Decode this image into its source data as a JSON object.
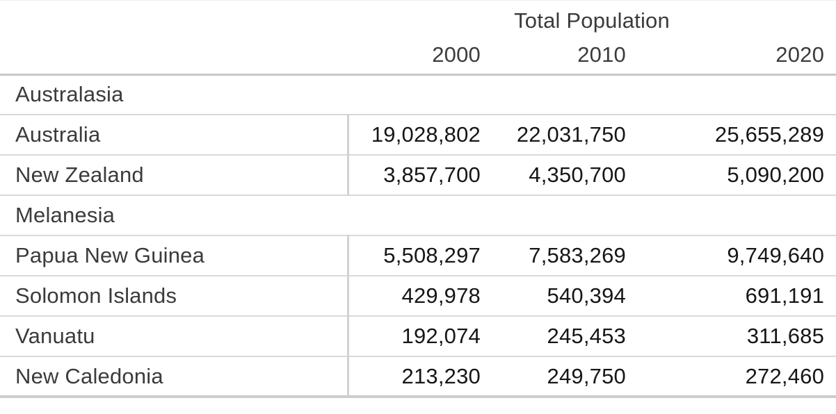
{
  "chart_data": {
    "type": "table",
    "title": "Total Population",
    "columns": [
      "",
      "2000",
      "2010",
      "2020"
    ],
    "sections": [
      {
        "label": "Australasia",
        "rows": [
          {
            "name": "Australia",
            "values": [
              "19,028,802",
              "22,031,750",
              "25,655,289"
            ]
          },
          {
            "name": "New Zealand",
            "values": [
              "3,857,700",
              "4,350,700",
              "5,090,200"
            ]
          }
        ]
      },
      {
        "label": "Melanesia",
        "rows": [
          {
            "name": "Papua New Guinea",
            "values": [
              "5,508,297",
              "7,583,269",
              "9,749,640"
            ]
          },
          {
            "name": "Solomon Islands",
            "values": [
              "429,978",
              "540,394",
              "691,191"
            ]
          },
          {
            "name": "Vanuatu",
            "values": [
              "192,074",
              "245,453",
              "311,685"
            ]
          },
          {
            "name": "New Caledonia",
            "values": [
              "213,230",
              "249,750",
              "272,460"
            ]
          }
        ]
      }
    ],
    "layout_hints": {
      "year_columns_right_aligned": true,
      "group_header_spans_all_columns": true
    }
  },
  "colors": {
    "label_text": "#3b3b3b",
    "number_text": "#161616",
    "row_line": "#d9d9d9",
    "header_line": "#c8c8c8",
    "column_divider": "#d2d2d2",
    "bottom_border": "#cdcdcd",
    "background": "#ffffff"
  }
}
